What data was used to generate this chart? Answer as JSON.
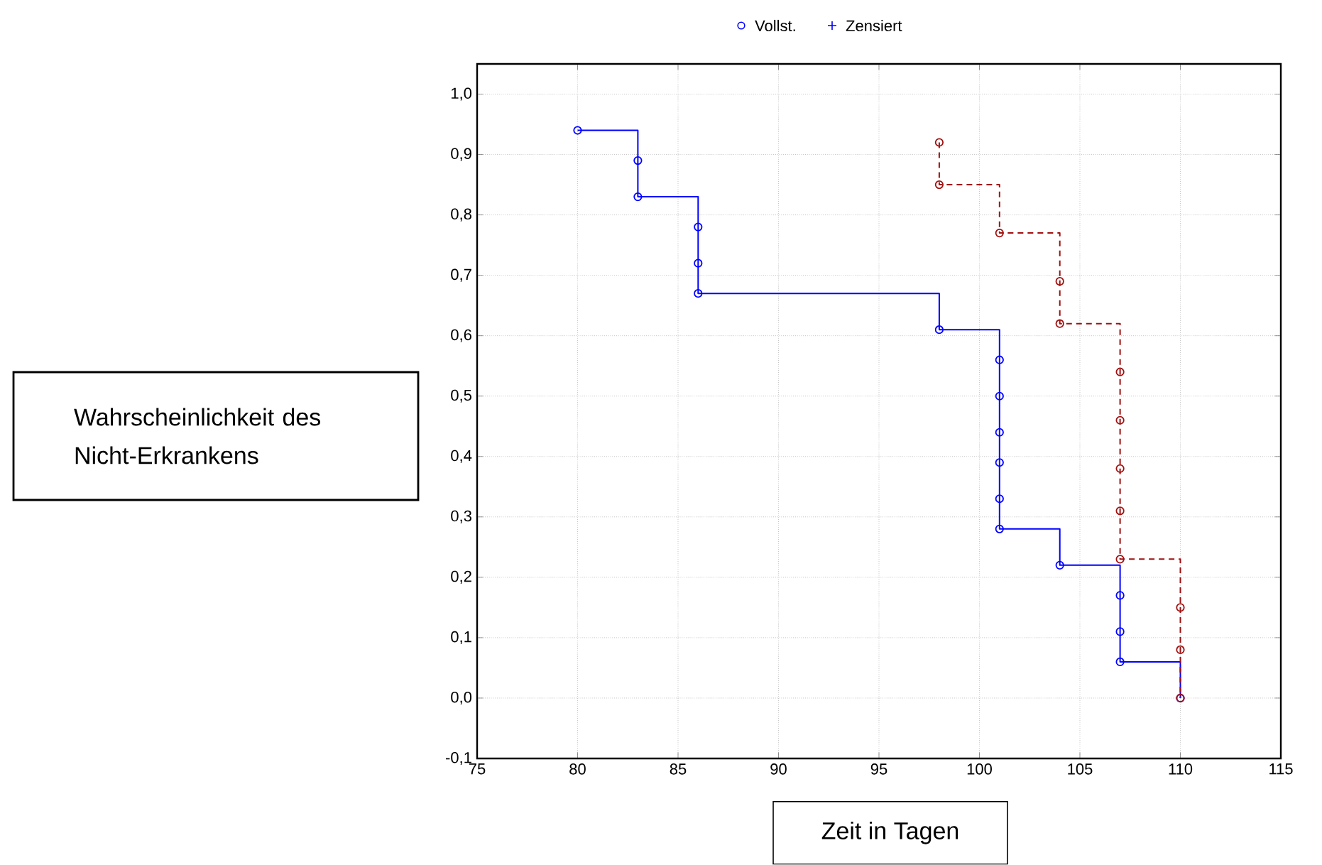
{
  "chart_data": {
    "type": "step",
    "annotations": [
      "Vollst.",
      "Zensiert",
      "Wahrscheinlichkeit des Nicht-Erkrankens",
      "Zeit in Tagen"
    ],
    "xlim": [
      75,
      115
    ],
    "xticks": [
      75,
      80,
      85,
      90,
      95,
      100,
      105,
      110,
      115
    ],
    "ylim": [
      -0.1,
      1.05
    ],
    "yticks": [
      {
        "value": -0.1,
        "label": "-0,1"
      },
      {
        "value": 0,
        "label": "0,0"
      },
      {
        "value": 0.1,
        "label": "0,1"
      },
      {
        "value": 0.2,
        "label": "0,2"
      },
      {
        "value": 0.3,
        "label": "0,3"
      },
      {
        "value": 0.4,
        "label": "0,4"
      },
      {
        "value": 0.5,
        "label": "0,5"
      },
      {
        "value": 0.6,
        "label": "0,6"
      },
      {
        "value": 0.7,
        "label": "0,7"
      },
      {
        "value": 0.8,
        "label": "0,8"
      },
      {
        "value": 0.9,
        "label": "0,9"
      },
      {
        "value": 1.0,
        "label": "1,0"
      }
    ],
    "grid": true,
    "marker": "circle",
    "series": [
      {
        "color": "#0000ff",
        "line_style": "solid",
        "x": [
          80,
          83,
          83,
          86,
          86,
          86,
          98,
          101,
          101,
          101,
          101,
          101,
          101,
          104,
          107,
          107,
          107,
          110
        ],
        "values": [
          0.94,
          0.89,
          0.83,
          0.78,
          0.72,
          0.67,
          0.61,
          0.56,
          0.5,
          0.44,
          0.39,
          0.33,
          0.28,
          0.22,
          0.17,
          0.11,
          0.06,
          0
        ]
      },
      {
        "color": "#a01010",
        "line_style": "dashed",
        "x": [
          98,
          98,
          101,
          104,
          104,
          107,
          107,
          107,
          107,
          107,
          110,
          110,
          110
        ],
        "values": [
          0.92,
          0.85,
          0.77,
          0.69,
          0.62,
          0.54,
          0.46,
          0.38,
          0.31,
          0.23,
          0.15,
          0.08,
          0
        ]
      }
    ]
  }
}
